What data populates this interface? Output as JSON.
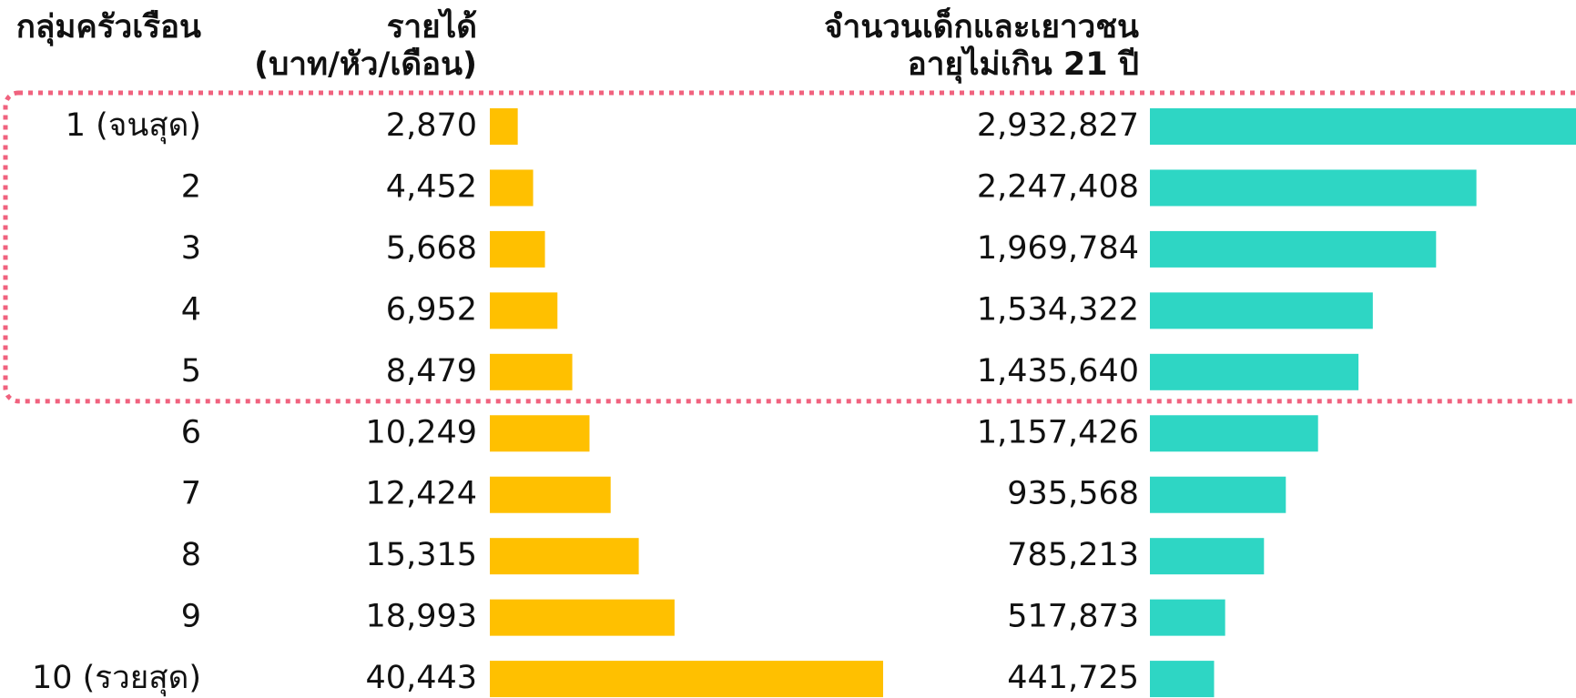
{
  "chart_data": {
    "type": "bar",
    "orientation": "horizontal",
    "categories_title": "กลุ่มครัวเรือน",
    "categories": [
      "1 (จนสุด)",
      "2",
      "3",
      "4",
      "5",
      "6",
      "7",
      "8",
      "9",
      "10 (รวยสุด)"
    ],
    "series": [
      {
        "name": [
          "รายได้",
          "(บาท/หัว/เดือน)"
        ],
        "color": "#ffc000",
        "values": [
          2870,
          4452,
          5668,
          6952,
          8479,
          10249,
          12424,
          15315,
          18993,
          40443
        ],
        "value_labels": [
          "2,870",
          "4,452",
          "5,668",
          "6,952",
          "8,479",
          "10,249",
          "12,424",
          "15,315",
          "18,993",
          "40,443"
        ]
      },
      {
        "name": [
          "จำนวนเด็กและเยาวชน",
          "อายุไม่เกิน 21 ปี"
        ],
        "color": "#2ed6c4",
        "values": [
          2932827,
          2247408,
          1969784,
          1534322,
          1435640,
          1157426,
          935568,
          785213,
          517873,
          441725
        ],
        "value_labels": [
          "2,932,827",
          "2,247,408",
          "1,969,784",
          "1,534,322",
          "1,435,640",
          "1,157,426",
          "935,568",
          "785,213",
          "517,873",
          "441,725"
        ]
      }
    ]
  }
}
